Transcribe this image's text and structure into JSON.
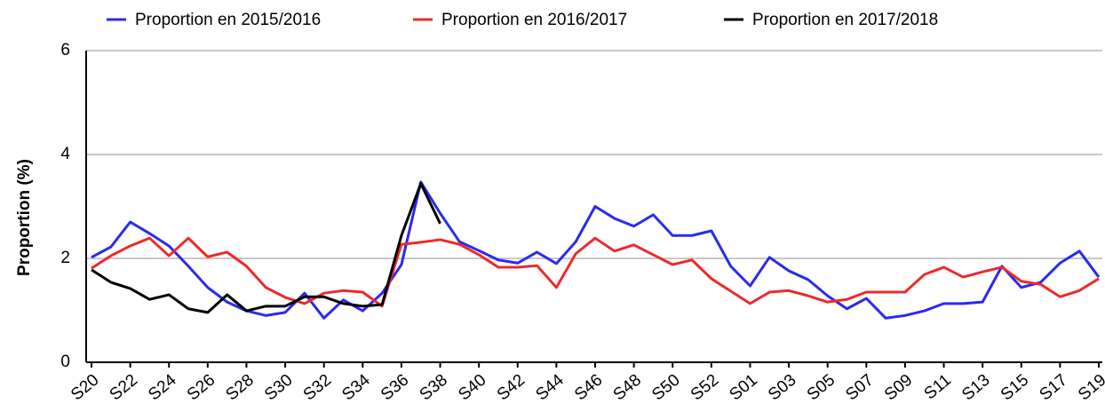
{
  "chart_data": {
    "type": "line",
    "y_label": "Proportion (%)",
    "categories": [
      "S20",
      null,
      "S22",
      null,
      "S24",
      null,
      "S26",
      null,
      "S28",
      null,
      "S30",
      null,
      "S32",
      null,
      "S34",
      null,
      "S36",
      null,
      "S38",
      null,
      "S40",
      null,
      "S42",
      null,
      "S44",
      null,
      "S46",
      null,
      "S48",
      null,
      "S50",
      null,
      "S52",
      null,
      "S01",
      null,
      "S03",
      null,
      "S05",
      null,
      "S07",
      null,
      "S09",
      null,
      "S11",
      null,
      "S13",
      null,
      "S15",
      null,
      "S17",
      null,
      "S19"
    ],
    "series": [
      {
        "name": "Proportion en 2015/2016",
        "color": "#2a2af0",
        "values": [
          2.02,
          2.22,
          2.7,
          2.48,
          2.24,
          1.85,
          1.44,
          1.16,
          0.99,
          0.9,
          0.96,
          1.33,
          0.85,
          1.2,
          0.99,
          1.33,
          1.88,
          3.47,
          2.87,
          2.32,
          2.15,
          1.97,
          1.91,
          2.12,
          1.9,
          2.32,
          3.0,
          2.77,
          2.62,
          2.84,
          2.44,
          2.44,
          2.53,
          1.85,
          1.47,
          2.02,
          1.76,
          1.59,
          1.28,
          1.03,
          1.23,
          0.85,
          0.9,
          0.99,
          1.13,
          1.13,
          1.16,
          1.85,
          1.44,
          1.54,
          1.91,
          2.14,
          1.64
        ]
      },
      {
        "name": "Proportion en 2016/2017",
        "color": "#f0282a",
        "values": [
          1.81,
          2.05,
          2.24,
          2.39,
          2.05,
          2.39,
          2.03,
          2.12,
          1.85,
          1.44,
          1.25,
          1.13,
          1.33,
          1.38,
          1.35,
          1.08,
          2.27,
          2.31,
          2.36,
          2.27,
          2.07,
          1.83,
          1.83,
          1.86,
          1.44,
          2.09,
          2.39,
          2.14,
          2.26,
          2.07,
          1.88,
          1.97,
          1.61,
          1.37,
          1.13,
          1.35,
          1.38,
          1.28,
          1.16,
          1.21,
          1.35,
          1.35,
          1.35,
          1.69,
          1.83,
          1.64,
          1.74,
          1.83,
          1.56,
          1.5,
          1.26,
          1.38,
          1.61
        ]
      },
      {
        "name": "Proportion en 2017/2018",
        "color": "#000000",
        "values": [
          1.78,
          1.54,
          1.42,
          1.21,
          1.3,
          1.03,
          0.96,
          1.3,
          0.99,
          1.08,
          1.08,
          1.26,
          1.26,
          1.13,
          1.08,
          1.11,
          2.44,
          3.44,
          2.67,
          null,
          null,
          null,
          null,
          null,
          null,
          null,
          null,
          null,
          null,
          null,
          null,
          null,
          null,
          null,
          null,
          null,
          null,
          null,
          null,
          null,
          null,
          null,
          null,
          null,
          null,
          null,
          null,
          null,
          null,
          null,
          null,
          null,
          null
        ]
      }
    ],
    "ylim": [
      0,
      6
    ],
    "yticks": [
      0,
      2,
      4,
      6
    ],
    "grid": true,
    "legend": "top"
  }
}
